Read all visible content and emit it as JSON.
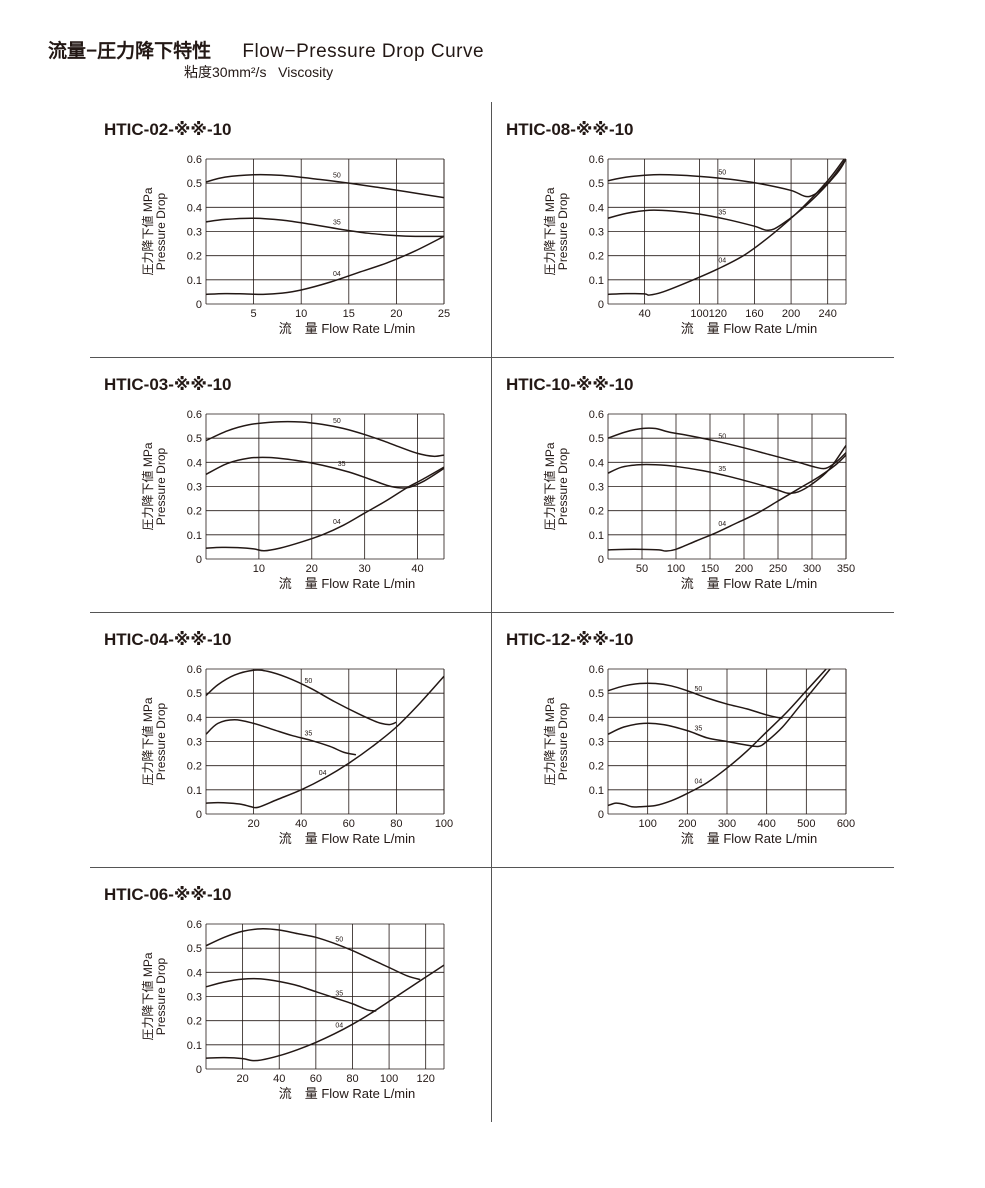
{
  "header": {
    "title_jp": "流量−圧力降下特性",
    "title_en": "Flow−Pressure  Drop  Curve",
    "viscosity_jp": "粘度30mm²/s",
    "viscosity_en": "Viscosity"
  },
  "axis": {
    "ylabel_jp": "圧力降下値",
    "ylabel_unit": "MPa",
    "ylabel_en": "Pressure Drop",
    "xlabel_jp": "流　量",
    "xlabel_en": "Flow Rate",
    "xlabel_unit": "L/min"
  },
  "chart_data": [
    {
      "type": "line",
      "title": "HTIC-02-※※-10",
      "xlim": [
        0,
        25
      ],
      "ylim": [
        0,
        0.6
      ],
      "xticks": [
        5,
        10,
        15,
        20,
        25
      ],
      "yticks": [
        0,
        0.1,
        0.2,
        0.3,
        0.4,
        0.5,
        0.6
      ],
      "series": [
        {
          "name": "50",
          "x": [
            0,
            2,
            5,
            8,
            12,
            15,
            18,
            21,
            25
          ],
          "y": [
            0.505,
            0.525,
            0.535,
            0.532,
            0.515,
            0.5,
            0.483,
            0.465,
            0.44
          ]
        },
        {
          "name": "35",
          "x": [
            0,
            2,
            5,
            8,
            11,
            14,
            17,
            20,
            22,
            25
          ],
          "y": [
            0.34,
            0.35,
            0.355,
            0.347,
            0.33,
            0.31,
            0.293,
            0.283,
            0.28,
            0.28
          ]
        },
        {
          "name": "04",
          "x": [
            0,
            2,
            4,
            6,
            8,
            10,
            13,
            16,
            19,
            22,
            25
          ],
          "y": [
            0.04,
            0.043,
            0.042,
            0.04,
            0.045,
            0.058,
            0.09,
            0.13,
            0.17,
            0.22,
            0.28
          ]
        }
      ]
    },
    {
      "type": "line",
      "title": "HTIC-08-※※-10",
      "xlim": [
        0,
        260
      ],
      "ylim": [
        0,
        0.6
      ],
      "xticks": [
        40,
        100,
        120,
        160,
        200,
        240
      ],
      "yticks": [
        0,
        0.1,
        0.2,
        0.3,
        0.4,
        0.5,
        0.6
      ],
      "series": [
        {
          "name": "50",
          "x": [
            0,
            20,
            50,
            80,
            110,
            140,
            170,
            200,
            220,
            240,
            260
          ],
          "y": [
            0.51,
            0.525,
            0.535,
            0.533,
            0.525,
            0.513,
            0.495,
            0.47,
            0.445,
            0.5,
            0.6
          ]
        },
        {
          "name": "35",
          "x": [
            0,
            20,
            45,
            70,
            100,
            130,
            160,
            175,
            190,
            220,
            250,
            260
          ],
          "y": [
            0.355,
            0.375,
            0.388,
            0.385,
            0.372,
            0.35,
            0.322,
            0.305,
            0.33,
            0.42,
            0.54,
            0.6
          ]
        },
        {
          "name": "04",
          "x": [
            0,
            20,
            40,
            45,
            60,
            90,
            120,
            150,
            180,
            210,
            240,
            258
          ],
          "y": [
            0.04,
            0.043,
            0.042,
            0.037,
            0.05,
            0.095,
            0.145,
            0.205,
            0.29,
            0.39,
            0.51,
            0.6
          ]
        }
      ]
    },
    {
      "type": "line",
      "title": "HTIC-03-※※-10",
      "xlim": [
        0,
        45
      ],
      "ylim": [
        0,
        0.6
      ],
      "xticks": [
        10,
        20,
        30,
        40
      ],
      "yticks": [
        0,
        0.1,
        0.2,
        0.3,
        0.4,
        0.5,
        0.6
      ],
      "series": [
        {
          "name": "50",
          "x": [
            0,
            4,
            8,
            13,
            18,
            22,
            26,
            30,
            34,
            37,
            40,
            43,
            45
          ],
          "y": [
            0.49,
            0.53,
            0.555,
            0.567,
            0.567,
            0.557,
            0.54,
            0.515,
            0.485,
            0.46,
            0.437,
            0.425,
            0.43
          ]
        },
        {
          "name": "35",
          "x": [
            0,
            4,
            8,
            12,
            17,
            22,
            27,
            31,
            35,
            38,
            41,
            45
          ],
          "y": [
            0.35,
            0.395,
            0.417,
            0.42,
            0.408,
            0.388,
            0.36,
            0.33,
            0.3,
            0.295,
            0.32,
            0.375
          ]
        },
        {
          "name": "04",
          "x": [
            0,
            3,
            6,
            9,
            11,
            14,
            18,
            22,
            26,
            30,
            34,
            38,
            41,
            45
          ],
          "y": [
            0.045,
            0.048,
            0.047,
            0.042,
            0.034,
            0.045,
            0.07,
            0.1,
            0.14,
            0.19,
            0.24,
            0.295,
            0.33,
            0.38
          ]
        }
      ]
    },
    {
      "type": "line",
      "title": "HTIC-10-※※-10",
      "xlim": [
        0,
        350
      ],
      "ylim": [
        0,
        0.6
      ],
      "xticks": [
        50,
        100,
        150,
        200,
        250,
        300,
        350
      ],
      "yticks": [
        0,
        0.1,
        0.2,
        0.3,
        0.4,
        0.5,
        0.6
      ],
      "series": [
        {
          "name": "50",
          "x": [
            0,
            25,
            50,
            70,
            90,
            120,
            160,
            200,
            240,
            280,
            305,
            320,
            335,
            350
          ],
          "y": [
            0.5,
            0.525,
            0.54,
            0.54,
            0.525,
            0.51,
            0.487,
            0.46,
            0.43,
            0.4,
            0.38,
            0.375,
            0.4,
            0.44
          ]
        },
        {
          "name": "35",
          "x": [
            0,
            20,
            45,
            70,
            100,
            140,
            180,
            220,
            250,
            265,
            280,
            300,
            325,
            350
          ],
          "y": [
            0.355,
            0.38,
            0.39,
            0.39,
            0.383,
            0.365,
            0.34,
            0.31,
            0.285,
            0.272,
            0.278,
            0.31,
            0.37,
            0.47
          ]
        },
        {
          "name": "04",
          "x": [
            0,
            25,
            50,
            75,
            85,
            100,
            130,
            160,
            190,
            220,
            250,
            280,
            310,
            335,
            350
          ],
          "y": [
            0.038,
            0.04,
            0.04,
            0.038,
            0.033,
            0.04,
            0.075,
            0.11,
            0.15,
            0.19,
            0.24,
            0.29,
            0.34,
            0.39,
            0.43
          ]
        }
      ]
    },
    {
      "type": "line",
      "title": "HTIC-04-※※-10",
      "xlim": [
        0,
        100
      ],
      "ylim": [
        0,
        0.6
      ],
      "xticks": [
        20,
        40,
        60,
        80,
        100
      ],
      "yticks": [
        0,
        0.1,
        0.2,
        0.3,
        0.4,
        0.5,
        0.6
      ],
      "series": [
        {
          "name": "50",
          "x": [
            0,
            5,
            12,
            20,
            26,
            34,
            44,
            54,
            64,
            72,
            77,
            80
          ],
          "y": [
            0.49,
            0.535,
            0.575,
            0.595,
            0.59,
            0.565,
            0.52,
            0.465,
            0.415,
            0.38,
            0.37,
            0.38
          ]
        },
        {
          "name": "35",
          "x": [
            0,
            5,
            12,
            20,
            28,
            36,
            44,
            52,
            58,
            63
          ],
          "y": [
            0.33,
            0.375,
            0.39,
            0.375,
            0.35,
            0.325,
            0.305,
            0.28,
            0.255,
            0.245
          ]
        },
        {
          "name": "04",
          "x": [
            0,
            5,
            10,
            15,
            19,
            22,
            30,
            40,
            50,
            60,
            70,
            80,
            90,
            100
          ],
          "y": [
            0.045,
            0.047,
            0.045,
            0.04,
            0.03,
            0.028,
            0.06,
            0.1,
            0.15,
            0.21,
            0.28,
            0.36,
            0.46,
            0.57
          ]
        }
      ]
    },
    {
      "type": "line",
      "title": "HTIC-12-※※-10",
      "xlim": [
        0,
        600
      ],
      "ylim": [
        0,
        0.6
      ],
      "xticks": [
        100,
        200,
        300,
        400,
        500,
        600
      ],
      "yticks": [
        0,
        0.1,
        0.2,
        0.3,
        0.4,
        0.5,
        0.6
      ],
      "series": [
        {
          "name": "50",
          "x": [
            0,
            40,
            80,
            120,
            160,
            200,
            250,
            300,
            350,
            400,
            440
          ],
          "y": [
            0.51,
            0.53,
            0.54,
            0.54,
            0.53,
            0.51,
            0.48,
            0.455,
            0.435,
            0.41,
            0.395
          ]
        },
        {
          "name": "35",
          "x": [
            0,
            40,
            90,
            140,
            200,
            250,
            300,
            350,
            380,
            400,
            440,
            480,
            520,
            560
          ],
          "y": [
            0.33,
            0.36,
            0.375,
            0.37,
            0.345,
            0.315,
            0.3,
            0.285,
            0.28,
            0.3,
            0.36,
            0.44,
            0.52,
            0.6
          ]
        },
        {
          "name": "04",
          "x": [
            0,
            20,
            40,
            60,
            80,
            120,
            160,
            200,
            250,
            300,
            350,
            400,
            450,
            500,
            550
          ],
          "y": [
            0.035,
            0.045,
            0.04,
            0.03,
            0.03,
            0.035,
            0.055,
            0.085,
            0.13,
            0.19,
            0.26,
            0.34,
            0.42,
            0.51,
            0.6
          ]
        }
      ]
    },
    {
      "type": "line",
      "title": "HTIC-06-※※-10",
      "xlim": [
        0,
        130
      ],
      "ylim": [
        0,
        0.6
      ],
      "xticks": [
        20,
        40,
        60,
        80,
        100,
        120
      ],
      "yticks": [
        0,
        0.1,
        0.2,
        0.3,
        0.4,
        0.5,
        0.6
      ],
      "series": [
        {
          "name": "50",
          "x": [
            0,
            10,
            20,
            30,
            40,
            50,
            60,
            70,
            80,
            90,
            100,
            110,
            117
          ],
          "y": [
            0.51,
            0.545,
            0.57,
            0.58,
            0.575,
            0.56,
            0.545,
            0.52,
            0.49,
            0.455,
            0.42,
            0.385,
            0.37
          ]
        },
        {
          "name": "35",
          "x": [
            0,
            10,
            20,
            30,
            40,
            50,
            60,
            70,
            80,
            88,
            93
          ],
          "y": [
            0.34,
            0.36,
            0.372,
            0.373,
            0.362,
            0.345,
            0.32,
            0.295,
            0.27,
            0.245,
            0.24
          ]
        },
        {
          "name": "04",
          "x": [
            0,
            10,
            20,
            25,
            30,
            40,
            50,
            60,
            70,
            80,
            90,
            100,
            110,
            120,
            130
          ],
          "y": [
            0.045,
            0.047,
            0.043,
            0.035,
            0.037,
            0.055,
            0.08,
            0.11,
            0.145,
            0.185,
            0.23,
            0.28,
            0.33,
            0.38,
            0.43
          ]
        }
      ]
    }
  ]
}
